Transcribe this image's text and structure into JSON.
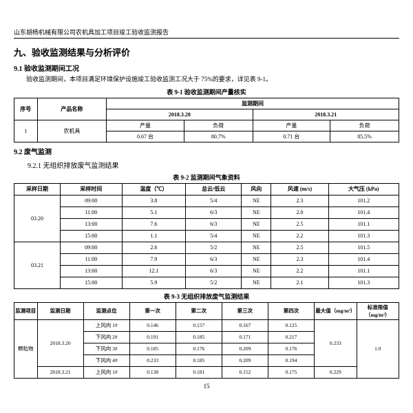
{
  "header": "山东胡杨机械有限公司农机具加工项目竣工验收监测报告",
  "title9": "九、验收监测结果与分析评价",
  "s91": {
    "heading": "9.1 验收监测期间工况",
    "body": "验收监测期间，本项目满足环境保护设施竣工验收监测工况大于 75%的要求，详见表 9-1。"
  },
  "t91": {
    "caption": "表 9-1  验收监测期间产量核实",
    "h": [
      "序号",
      "产品名称",
      "监测期间"
    ],
    "h2": [
      "2018.3.20",
      "2018.3.21"
    ],
    "h3": [
      "产量",
      "负荷"
    ],
    "r": [
      [
        "1",
        "农机具",
        "0.67 台",
        "80.7%",
        "0.71 台",
        "85.5%"
      ]
    ]
  },
  "s92": {
    "heading": "9.2 废气监测",
    "sub": "9.2.1 无组织排放废气监测结果"
  },
  "t92": {
    "caption": "表 9-2  监测期间气象资料",
    "h": [
      "采样日期",
      "采样时间",
      "温度（℃）",
      "总云/低云",
      "风向",
      "风速 (m/s)",
      "大气压 (kPa)"
    ],
    "groups": [
      {
        "date": "03.20",
        "rows": [
          [
            "09:00",
            "3.8",
            "5/4",
            "NE",
            "2.3",
            "101.2"
          ],
          [
            "11:00",
            "5.1",
            "6/3",
            "NE",
            "2.0",
            "101.4"
          ],
          [
            "13:00",
            "7.6",
            "6/3",
            "NE",
            "2.5",
            "101.1"
          ],
          [
            "15:00",
            "1.1",
            "5/4",
            "NE",
            "2.2",
            "101.3"
          ]
        ]
      },
      {
        "date": "03.21",
        "rows": [
          [
            "09:00",
            "2.6",
            "5/2",
            "NE",
            "2.5",
            "101.5"
          ],
          [
            "11:00",
            "7.9",
            "6/3",
            "NE",
            "2.3",
            "101.4"
          ],
          [
            "13:00",
            "12.1",
            "6/3",
            "NE",
            "2.2",
            "101.1"
          ],
          [
            "15:00",
            "5.9",
            "5/2",
            "NE",
            "2.1",
            "101.3"
          ]
        ]
      }
    ]
  },
  "t93": {
    "caption": "表 9-3  无组织排放废气监测结果",
    "h": [
      "监测项目",
      "监测日期",
      "监测点位",
      "第一次",
      "第二次",
      "第三次",
      "第四次",
      "最大值（mg/m³）",
      "标准限值（mg/m³）"
    ],
    "item": "颗粒物",
    "limit": "1.0",
    "groups": [
      {
        "date": "2018.3.20",
        "max": "0.233",
        "rows": [
          [
            "上风向 1#",
            "0.146",
            "0.157",
            "0.167",
            "0.125"
          ],
          [
            "下风向 2#",
            "0.191",
            "0.185",
            "0.171",
            "0.217"
          ],
          [
            "下风向 3#",
            "0.185",
            "0.176",
            "0.209",
            "0.176"
          ],
          [
            "下风向 4#",
            "0.233",
            "0.185",
            "0.209",
            "0.194"
          ]
        ]
      },
      {
        "date": "2018.3.21",
        "max": "0.229",
        "rows": [
          [
            "上风向 1#",
            "0.138",
            "0.181",
            "0.152",
            "0.175"
          ]
        ]
      }
    ]
  },
  "pageNum": "15"
}
